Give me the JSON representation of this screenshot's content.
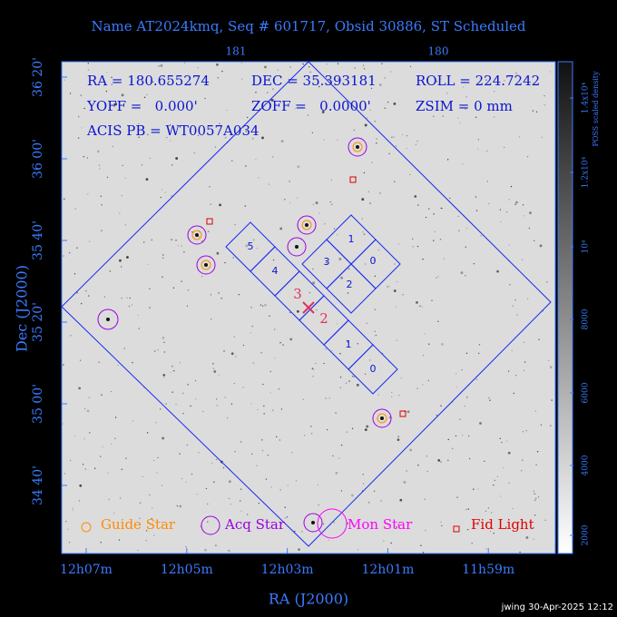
{
  "header": {
    "title": "Name AT2024kmq, Seq # 601717, Obsid 30886, ST Scheduled"
  },
  "info": {
    "ra": "RA = 180.655274",
    "dec": "DEC = 35.393181",
    "roll": "ROLL = 224.7242",
    "yoff": "YOFF =   0.000'",
    "zoff": "ZOFF =   0.0000'",
    "zsim": "ZSIM = 0 mm",
    "acis": "ACIS PB = WT0057A034"
  },
  "axes": {
    "top_ticks": [
      "181",
      "180"
    ],
    "left_ticks": [
      "36 20'",
      "36 00'",
      "35 40'",
      "35 20'",
      "35 00'",
      "34 40'"
    ],
    "bottom_ticks": [
      "12h07m",
      "12h05m",
      "12h03m",
      "12h01m",
      "11h59m"
    ],
    "x_label": "RA (J2000)",
    "y_label": "Dec (J2000)"
  },
  "ccd_labels": {
    "s_array": [
      "5",
      "4",
      "1",
      "0"
    ],
    "i_array": [
      "1",
      "3",
      "0",
      "2"
    ]
  },
  "aimpoint_labels": [
    "3",
    "2"
  ],
  "legend": [
    "Guide Star",
    "Acq Star",
    "Mon Star",
    "Fid Light"
  ],
  "colorbar": {
    "title": "POSS scaled density",
    "ticks": [
      "1.4x10⁴",
      "1.2x10⁴",
      "10⁴",
      "8000",
      "6000",
      "4000",
      "2000"
    ]
  },
  "footer": "jwing 30-Apr-2025 12:12"
}
